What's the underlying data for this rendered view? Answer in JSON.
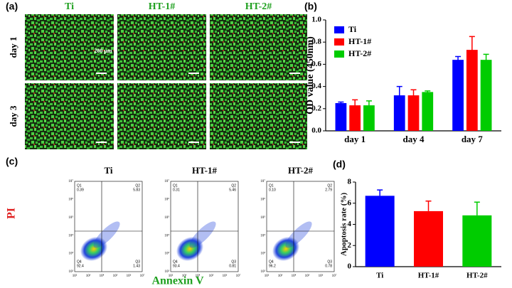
{
  "panel_labels": [
    "(a)",
    "(b)",
    "(c)",
    "(d)"
  ],
  "microscopy": {
    "columns": [
      "Ti",
      "HT-1#",
      "HT-2#"
    ],
    "rows": [
      "day 1",
      "day 3"
    ],
    "scale_bar": "200 μm"
  },
  "flow": {
    "y_label": "PI",
    "x_label": "Annexin V",
    "axis_ticks": [
      "10²",
      "10³",
      "10⁴",
      "10⁵",
      "10⁶",
      "10⁷"
    ],
    "samples": [
      {
        "title": "Ti",
        "quadrants": [
          {
            "name": "Q1",
            "value": "0.39"
          },
          {
            "name": "Q2",
            "value": "5.83"
          },
          {
            "name": "Q3",
            "value": "1.43"
          },
          {
            "name": "Q4",
            "value": "92.4"
          }
        ]
      },
      {
        "title": "HT-1#",
        "quadrants": [
          {
            "name": "Q1",
            "value": "0.31"
          },
          {
            "name": "Q2",
            "value": "5.46"
          },
          {
            "name": "Q3",
            "value": "0.81"
          },
          {
            "name": "Q4",
            "value": "93.4"
          }
        ]
      },
      {
        "title": "HT-2#",
        "quadrants": [
          {
            "name": "Q1",
            "value": "0.10"
          },
          {
            "name": "Q2",
            "value": "2.79"
          },
          {
            "name": "Q3",
            "value": "0.78"
          },
          {
            "name": "Q4",
            "value": "96.2"
          }
        ]
      }
    ]
  },
  "chart_data": [
    {
      "type": "grouped-bar",
      "y_label": "OD value (450nm)",
      "categories": [
        "day 1",
        "day 4",
        "day 7"
      ],
      "series": [
        {
          "name": "Ti",
          "color": "#0000ff",
          "values": [
            0.25,
            0.32,
            0.64
          ],
          "errors": [
            0.01,
            0.08,
            0.03
          ]
        },
        {
          "name": "HT-1#",
          "color": "#ff0000",
          "values": [
            0.23,
            0.32,
            0.73
          ],
          "errors": [
            0.05,
            0.05,
            0.12
          ]
        },
        {
          "name": "HT-2#",
          "color": "#00cc00",
          "values": [
            0.23,
            0.35,
            0.64
          ],
          "errors": [
            0.04,
            0.01,
            0.05
          ]
        }
      ],
      "ylim": [
        0,
        1.0
      ],
      "yticks": [
        {
          "value": 0,
          "label": "0.0"
        },
        0.2,
        0.4,
        0.6,
        0.8,
        {
          "value": 1.0,
          "label": "1.0"
        }
      ],
      "legend": "top-left"
    },
    {
      "type": "bar",
      "y_label": "Apoptosis rate (%)",
      "categories": [
        "Ti",
        "HT-1#",
        "HT-2#"
      ],
      "values": [
        6.7,
        5.25,
        4.85
      ],
      "errors": [
        0.55,
        0.95,
        1.25
      ],
      "colors": [
        "#0000ff",
        "#ff0000",
        "#00cc00"
      ],
      "ylim": [
        0,
        8
      ],
      "yticks": [
        0,
        2,
        4,
        6,
        8
      ]
    }
  ]
}
